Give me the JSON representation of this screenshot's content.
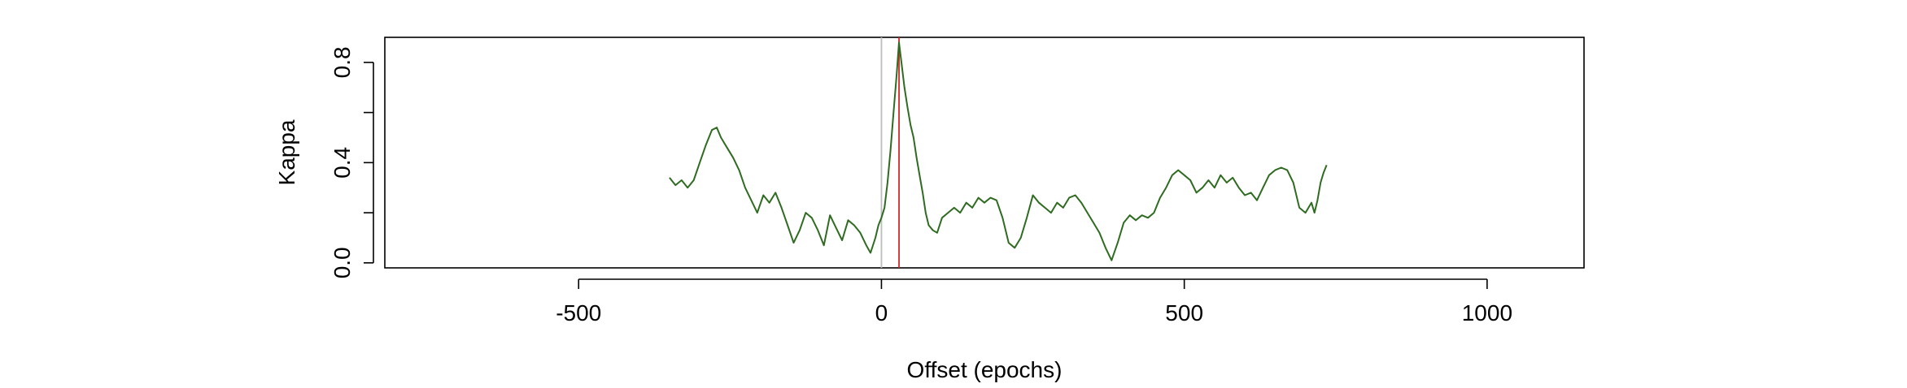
{
  "chart_data": {
    "type": "line",
    "xlabel": "Offset (epochs)",
    "ylabel": "Kappa",
    "xlim": [
      -820,
      1160
    ],
    "ylim": [
      -0.02,
      0.9
    ],
    "x_ticks": [
      {
        "value": -500,
        "label": "-500"
      },
      {
        "value": 0,
        "label": "0"
      },
      {
        "value": 500,
        "label": "500"
      },
      {
        "value": 1000,
        "label": "1000"
      }
    ],
    "y_ticks": [
      {
        "value": 0.0,
        "label": "0.0"
      },
      {
        "value": 0.2,
        "label": ""
      },
      {
        "value": 0.4,
        "label": "0.4"
      },
      {
        "value": 0.6,
        "label": ""
      },
      {
        "value": 0.8,
        "label": "0.8"
      }
    ],
    "reference_lines": [
      {
        "x": 0,
        "color": "#bdbdbd"
      },
      {
        "x": 29,
        "color": "#d62728"
      }
    ],
    "series": [
      {
        "color": "#2f6b21",
        "points": [
          [
            -350,
            0.34
          ],
          [
            -340,
            0.31
          ],
          [
            -330,
            0.33
          ],
          [
            -320,
            0.3
          ],
          [
            -310,
            0.33
          ],
          [
            -300,
            0.4
          ],
          [
            -290,
            0.47
          ],
          [
            -280,
            0.53
          ],
          [
            -272,
            0.54
          ],
          [
            -265,
            0.5
          ],
          [
            -255,
            0.46
          ],
          [
            -245,
            0.42
          ],
          [
            -235,
            0.37
          ],
          [
            -225,
            0.3
          ],
          [
            -215,
            0.25
          ],
          [
            -205,
            0.2
          ],
          [
            -195,
            0.27
          ],
          [
            -185,
            0.24
          ],
          [
            -175,
            0.28
          ],
          [
            -165,
            0.22
          ],
          [
            -155,
            0.15
          ],
          [
            -145,
            0.08
          ],
          [
            -135,
            0.13
          ],
          [
            -125,
            0.2
          ],
          [
            -115,
            0.18
          ],
          [
            -105,
            0.13
          ],
          [
            -95,
            0.07
          ],
          [
            -85,
            0.19
          ],
          [
            -75,
            0.14
          ],
          [
            -65,
            0.09
          ],
          [
            -55,
            0.17
          ],
          [
            -45,
            0.15
          ],
          [
            -35,
            0.12
          ],
          [
            -25,
            0.07
          ],
          [
            -18,
            0.04
          ],
          [
            -10,
            0.1
          ],
          [
            -5,
            0.15
          ],
          [
            0,
            0.18
          ],
          [
            5,
            0.22
          ],
          [
            10,
            0.32
          ],
          [
            15,
            0.45
          ],
          [
            20,
            0.6
          ],
          [
            25,
            0.75
          ],
          [
            29,
            0.88
          ],
          [
            33,
            0.8
          ],
          [
            38,
            0.7
          ],
          [
            43,
            0.62
          ],
          [
            48,
            0.55
          ],
          [
            53,
            0.5
          ],
          [
            58,
            0.42
          ],
          [
            63,
            0.35
          ],
          [
            68,
            0.28
          ],
          [
            73,
            0.2
          ],
          [
            78,
            0.15
          ],
          [
            85,
            0.13
          ],
          [
            92,
            0.12
          ],
          [
            100,
            0.18
          ],
          [
            110,
            0.2
          ],
          [
            120,
            0.22
          ],
          [
            130,
            0.2
          ],
          [
            140,
            0.24
          ],
          [
            150,
            0.22
          ],
          [
            160,
            0.26
          ],
          [
            170,
            0.24
          ],
          [
            180,
            0.26
          ],
          [
            190,
            0.25
          ],
          [
            200,
            0.18
          ],
          [
            210,
            0.08
          ],
          [
            220,
            0.06
          ],
          [
            230,
            0.1
          ],
          [
            240,
            0.18
          ],
          [
            250,
            0.27
          ],
          [
            260,
            0.24
          ],
          [
            270,
            0.22
          ],
          [
            280,
            0.2
          ],
          [
            290,
            0.24
          ],
          [
            300,
            0.22
          ],
          [
            310,
            0.26
          ],
          [
            320,
            0.27
          ],
          [
            330,
            0.24
          ],
          [
            340,
            0.2
          ],
          [
            350,
            0.16
          ],
          [
            360,
            0.12
          ],
          [
            370,
            0.06
          ],
          [
            380,
            0.01
          ],
          [
            390,
            0.08
          ],
          [
            400,
            0.16
          ],
          [
            410,
            0.19
          ],
          [
            420,
            0.17
          ],
          [
            430,
            0.19
          ],
          [
            440,
            0.18
          ],
          [
            450,
            0.2
          ],
          [
            460,
            0.26
          ],
          [
            470,
            0.3
          ],
          [
            480,
            0.35
          ],
          [
            490,
            0.37
          ],
          [
            500,
            0.35
          ],
          [
            510,
            0.33
          ],
          [
            520,
            0.28
          ],
          [
            530,
            0.3
          ],
          [
            540,
            0.33
          ],
          [
            550,
            0.3
          ],
          [
            560,
            0.35
          ],
          [
            570,
            0.32
          ],
          [
            580,
            0.34
          ],
          [
            590,
            0.3
          ],
          [
            600,
            0.27
          ],
          [
            610,
            0.28
          ],
          [
            620,
            0.25
          ],
          [
            630,
            0.3
          ],
          [
            640,
            0.35
          ],
          [
            650,
            0.37
          ],
          [
            660,
            0.38
          ],
          [
            670,
            0.37
          ],
          [
            680,
            0.32
          ],
          [
            690,
            0.22
          ],
          [
            700,
            0.2
          ],
          [
            710,
            0.24
          ],
          [
            715,
            0.2
          ],
          [
            720,
            0.25
          ],
          [
            725,
            0.32
          ],
          [
            730,
            0.36
          ],
          [
            735,
            0.39
          ]
        ]
      }
    ]
  }
}
